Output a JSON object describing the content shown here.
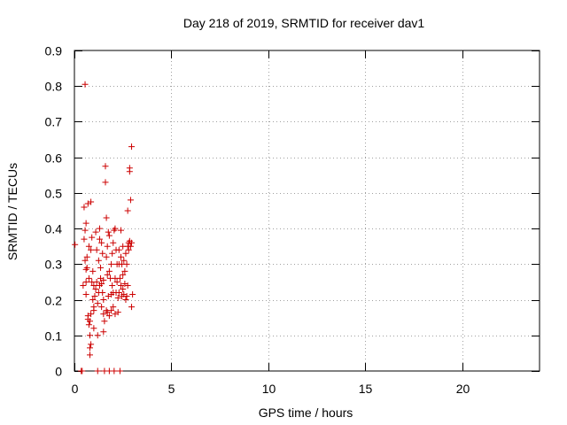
{
  "chart_data": {
    "type": "scatter",
    "title": "Day 218 of 2019, SRMTID for receiver dav1",
    "xlabel": "GPS time / hours",
    "ylabel": "SRMTID / TECUs",
    "xlim": [
      0,
      24
    ],
    "ylim": [
      0,
      0.9
    ],
    "xticks": [
      0,
      5,
      10,
      15,
      20
    ],
    "xtick_labels": [
      "0",
      "5",
      "10",
      "15",
      "20"
    ],
    "yticks": [
      0,
      0.1,
      0.2,
      0.3,
      0.4,
      0.5,
      0.6,
      0.7,
      0.8,
      0.9
    ],
    "ytick_labels": [
      "0",
      "0.1",
      "0.2",
      "0.3",
      "0.4",
      "0.5",
      "0.6",
      "0.7",
      "0.8",
      "0.9"
    ],
    "grid": true,
    "marker": "+",
    "color": "#cc0000",
    "series": [
      {
        "name": "SRMTID",
        "points": [
          [
            0.03,
            0.355
          ],
          [
            0.35,
            0.0
          ],
          [
            0.4,
            0.0
          ],
          [
            0.45,
            0.24
          ],
          [
            0.5,
            0.37
          ],
          [
            0.5,
            0.46
          ],
          [
            0.55,
            0.805
          ],
          [
            0.55,
            0.395
          ],
          [
            0.55,
            0.31
          ],
          [
            0.6,
            0.285
          ],
          [
            0.6,
            0.25
          ],
          [
            0.6,
            0.215
          ],
          [
            0.6,
            0.415
          ],
          [
            0.65,
            0.32
          ],
          [
            0.65,
            0.29
          ],
          [
            0.7,
            0.155
          ],
          [
            0.7,
            0.145
          ],
          [
            0.7,
            0.47
          ],
          [
            0.75,
            0.26
          ],
          [
            0.75,
            0.35
          ],
          [
            0.75,
            0.13
          ],
          [
            0.8,
            0.065
          ],
          [
            0.8,
            0.045
          ],
          [
            0.8,
            0.1
          ],
          [
            0.8,
            0.14
          ],
          [
            0.85,
            0.075
          ],
          [
            0.85,
            0.16
          ],
          [
            0.85,
            0.475
          ],
          [
            0.85,
            0.34
          ],
          [
            0.9,
            0.375
          ],
          [
            0.9,
            0.25
          ],
          [
            0.95,
            0.2
          ],
          [
            0.95,
            0.28
          ],
          [
            1.0,
            0.24
          ],
          [
            1.0,
            0.17
          ],
          [
            1.0,
            0.12
          ],
          [
            1.0,
            0.18
          ],
          [
            1.05,
            0.21
          ],
          [
            1.1,
            0.23
          ],
          [
            1.1,
            0.39
          ],
          [
            1.15,
            0.34
          ],
          [
            1.15,
            0.25
          ],
          [
            1.2,
            0.19
          ],
          [
            1.2,
            0.1
          ],
          [
            1.2,
            0.0
          ],
          [
            1.25,
            0.31
          ],
          [
            1.25,
            0.22
          ],
          [
            1.3,
            0.37
          ],
          [
            1.3,
            0.4
          ],
          [
            1.3,
            0.24
          ],
          [
            1.35,
            0.26
          ],
          [
            1.35,
            0.29
          ],
          [
            1.4,
            0.36
          ],
          [
            1.4,
            0.245
          ],
          [
            1.4,
            0.18
          ],
          [
            1.45,
            0.33
          ],
          [
            1.45,
            0.22
          ],
          [
            1.5,
            0.255
          ],
          [
            1.5,
            0.2
          ],
          [
            1.5,
            0.16
          ],
          [
            1.5,
            0.11
          ],
          [
            1.55,
            0.14
          ],
          [
            1.55,
            0.0
          ],
          [
            1.6,
            0.575
          ],
          [
            1.6,
            0.53
          ],
          [
            1.65,
            0.43
          ],
          [
            1.65,
            0.32
          ],
          [
            1.65,
            0.17
          ],
          [
            1.7,
            0.27
          ],
          [
            1.7,
            0.35
          ],
          [
            1.7,
            0.165
          ],
          [
            1.75,
            0.39
          ],
          [
            1.75,
            0.21
          ],
          [
            1.8,
            0.38
          ],
          [
            1.8,
            0.28
          ],
          [
            1.8,
            0.155
          ],
          [
            1.8,
            0.0
          ],
          [
            1.85,
            0.26
          ],
          [
            1.9,
            0.3
          ],
          [
            1.9,
            0.215
          ],
          [
            1.9,
            0.17
          ],
          [
            1.95,
            0.24
          ],
          [
            1.95,
            0.33
          ],
          [
            2.0,
            0.36
          ],
          [
            2.0,
            0.22
          ],
          [
            2.0,
            0.18
          ],
          [
            2.05,
            0.395
          ],
          [
            2.05,
            0.0
          ],
          [
            2.1,
            0.4
          ],
          [
            2.1,
            0.26
          ],
          [
            2.1,
            0.16
          ],
          [
            2.15,
            0.34
          ],
          [
            2.15,
            0.22
          ],
          [
            2.2,
            0.3
          ],
          [
            2.2,
            0.25
          ],
          [
            2.25,
            0.205
          ],
          [
            2.25,
            0.165
          ],
          [
            2.3,
            0.34
          ],
          [
            2.3,
            0.3
          ],
          [
            2.3,
            0.22
          ],
          [
            2.35,
            0.26
          ],
          [
            2.35,
            0.0
          ],
          [
            2.4,
            0.395
          ],
          [
            2.4,
            0.32
          ],
          [
            2.4,
            0.24
          ],
          [
            2.45,
            0.3
          ],
          [
            2.45,
            0.21
          ],
          [
            2.5,
            0.35
          ],
          [
            2.5,
            0.27
          ],
          [
            2.5,
            0.23
          ],
          [
            2.55,
            0.31
          ],
          [
            2.55,
            0.215
          ],
          [
            2.6,
            0.28
          ],
          [
            2.6,
            0.245
          ],
          [
            2.65,
            0.33
          ],
          [
            2.65,
            0.2
          ],
          [
            2.7,
            0.3
          ],
          [
            2.7,
            0.21
          ],
          [
            2.75,
            0.45
          ],
          [
            2.75,
            0.35
          ],
          [
            2.75,
            0.24
          ],
          [
            2.8,
            0.36
          ],
          [
            2.8,
            0.34
          ],
          [
            2.85,
            0.57
          ],
          [
            2.85,
            0.56
          ],
          [
            2.85,
            0.365
          ],
          [
            2.9,
            0.48
          ],
          [
            2.9,
            0.35
          ],
          [
            2.95,
            0.63
          ],
          [
            2.95,
            0.36
          ],
          [
            2.95,
            0.18
          ],
          [
            3.0,
            0.215
          ]
        ]
      }
    ]
  }
}
